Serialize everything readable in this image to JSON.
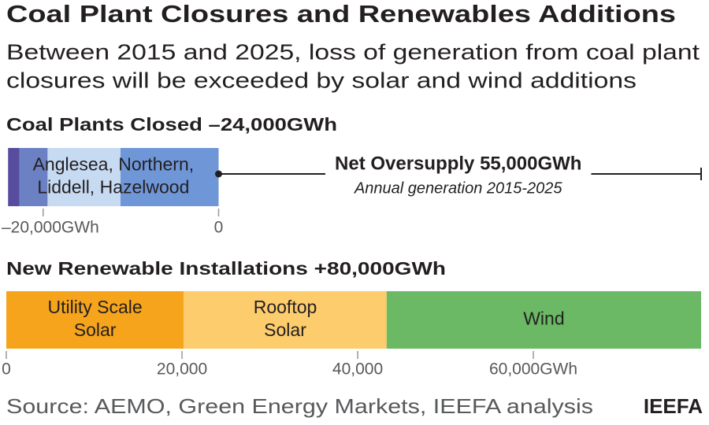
{
  "chart_data": [
    {
      "type": "bar-stacked-horizontal",
      "title": "Coal Plant Closures and Renewables Additions",
      "subtitle": [
        "Between 2015 and 2025, loss of generation from coal plant",
        "closures will be exceeded by solar and wind additions"
      ],
      "heading": "Coal Plants Closed –24,000GWh",
      "bar_label": [
        "Anglesea, Northern,",
        "Liddell, Hazelwood"
      ],
      "series": [
        {
          "color": "#6f97d8",
          "values": [
            -11200
          ]
        },
        {
          "color": "#c6daf2",
          "values": [
            -8300
          ]
        },
        {
          "color": "#6c80c4",
          "values": [
            -3200
          ]
        },
        {
          "color": "#574c9d",
          "values": [
            -1300
          ]
        }
      ],
      "xlim": [
        -24200,
        55000
      ],
      "xticks": [
        {
          "value": -20000,
          "label": "–20,000GWh"
        },
        0
      ],
      "annotation": {
        "text": "Net Oversupply 55,000GWh",
        "subtext": "Annual generation 2015-2025",
        "span": [
          0,
          55000
        ]
      }
    },
    {
      "type": "bar-stacked-horizontal",
      "heading": "New Renewable Installations +80,000GWh",
      "series": [
        {
          "name": [
            "Utility Scale",
            "Solar"
          ],
          "color": "#f6a41c",
          "values": [
            20200
          ]
        },
        {
          "name": [
            "Rooftop",
            "Solar"
          ],
          "color": "#fdcc6c",
          "values": [
            23100
          ]
        },
        {
          "name": [
            "Wind"
          ],
          "color": "#6bb964",
          "values": [
            35800
          ]
        }
      ],
      "xlim": [
        0,
        79100
      ],
      "xticks": [
        0,
        {
          "value": 20000,
          "label": "20,000"
        },
        {
          "value": 40000,
          "label": "40,000"
        },
        {
          "value": 60000,
          "label": "60,000GWh"
        }
      ],
      "source": "Source: AEMO, Green Energy Markets, IEEFA analysis",
      "brand": "IEEFA"
    }
  ]
}
